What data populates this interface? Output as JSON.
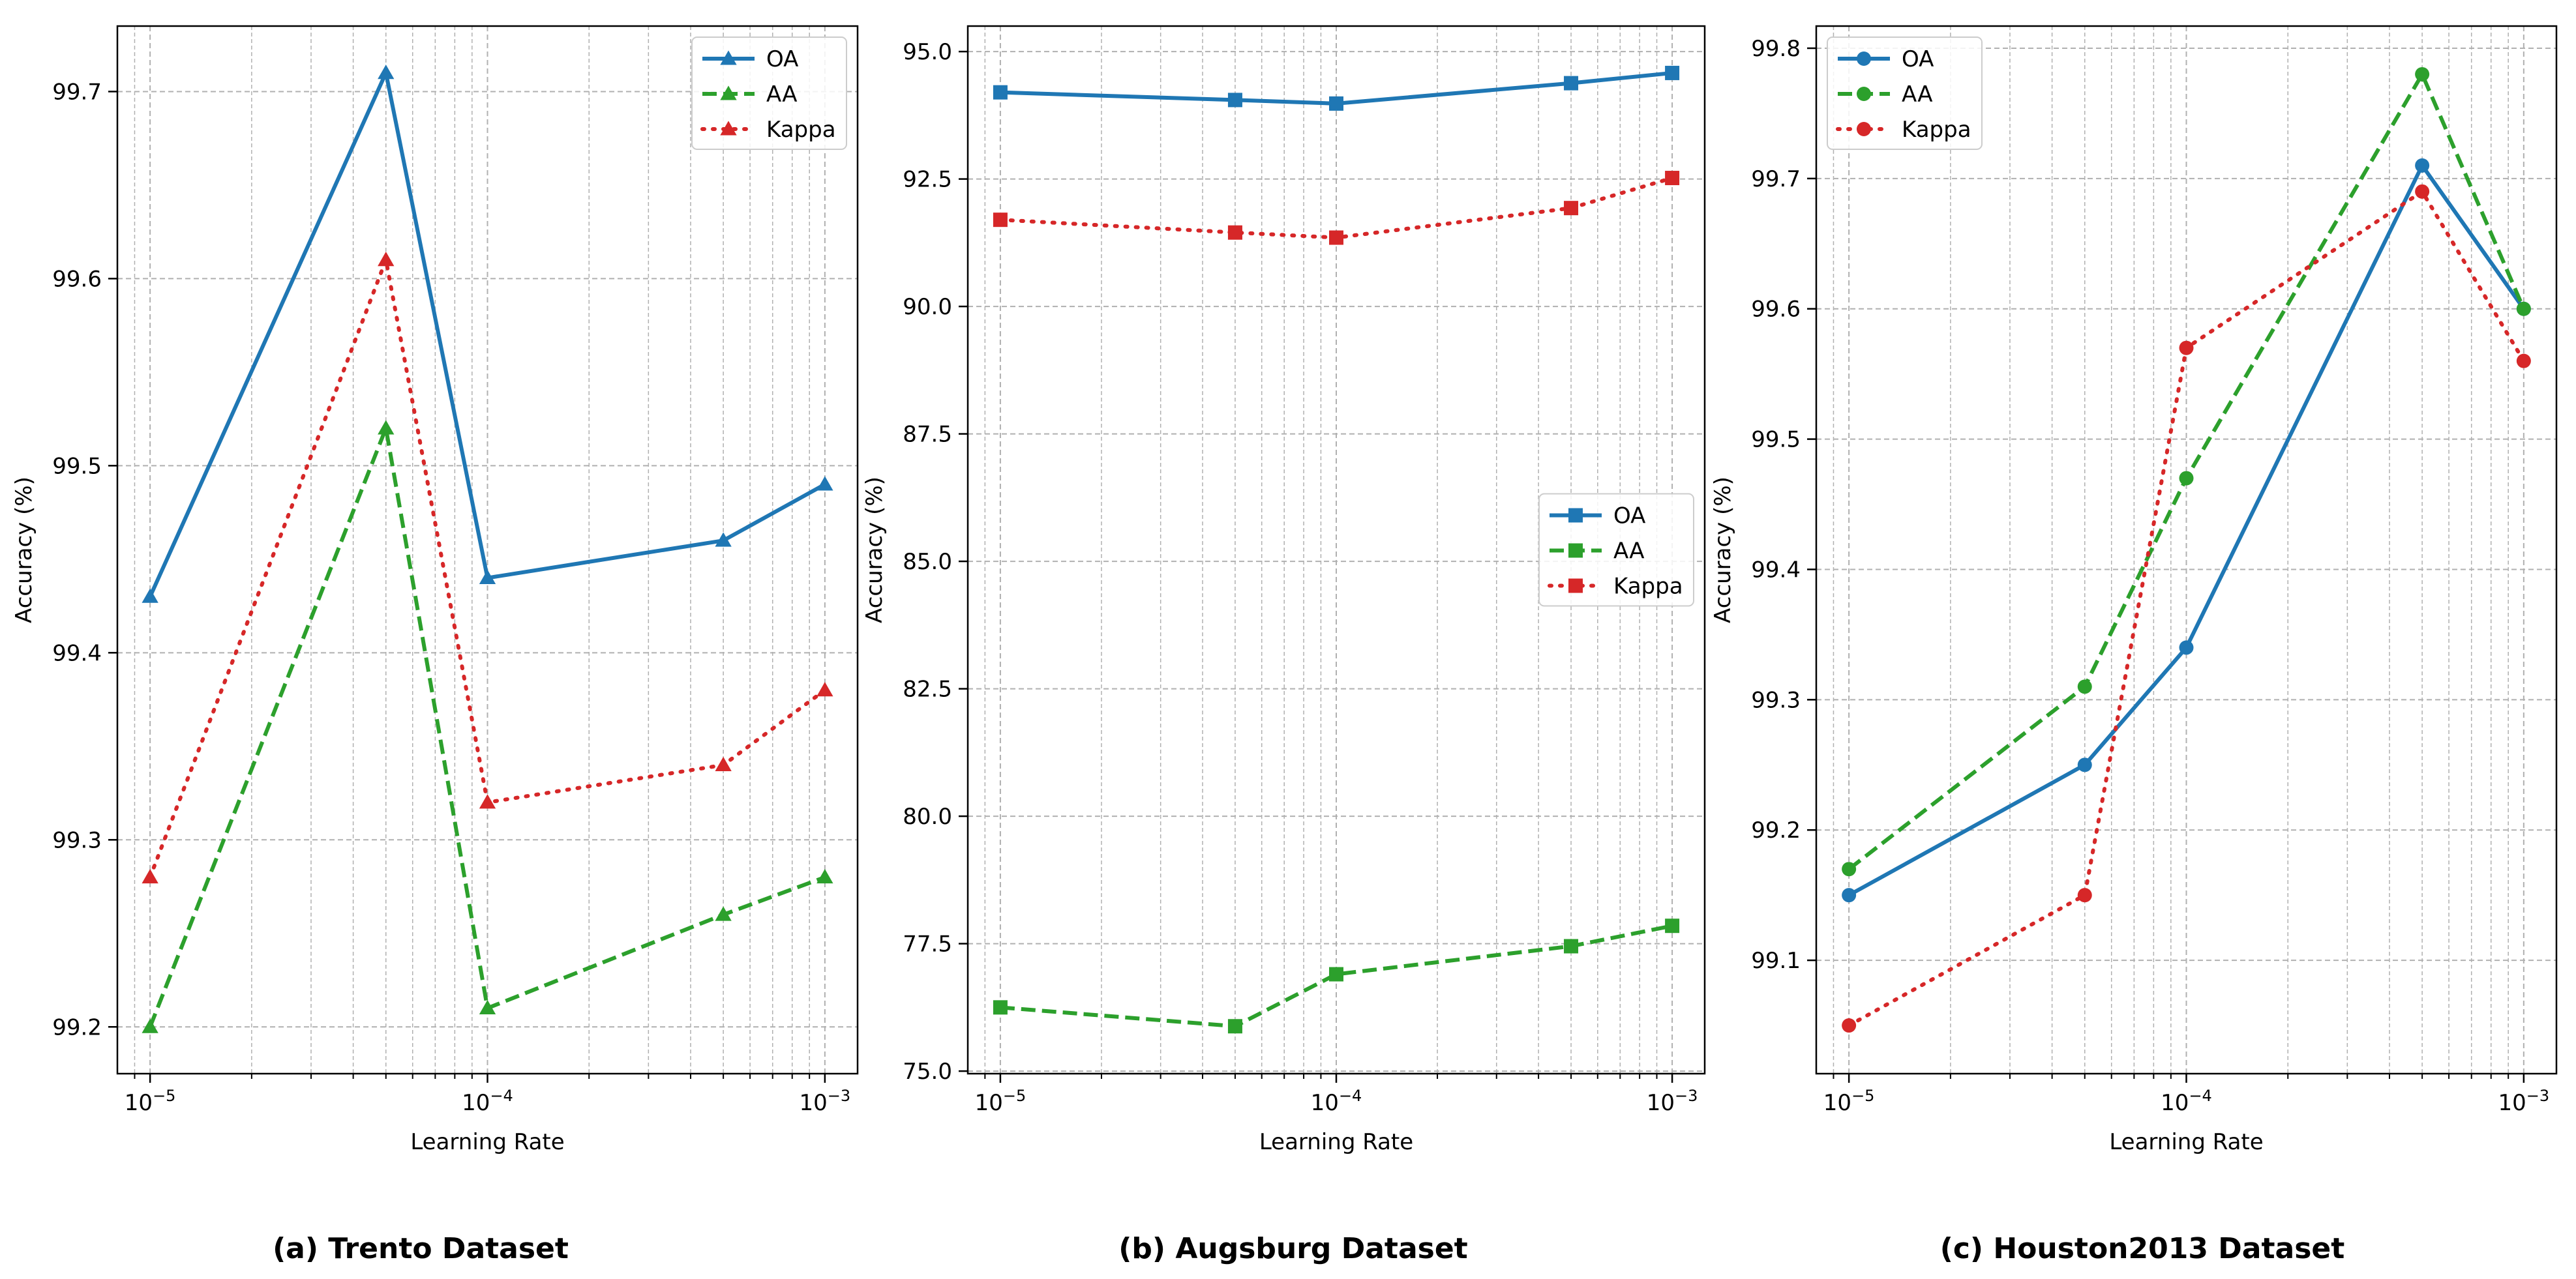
{
  "chart_data": [
    {
      "type": "line",
      "caption": "(a) Trento Dataset",
      "xlabel": "Learning Rate",
      "ylabel": "Accuracy (%)",
      "xscale": "log",
      "xlim": [
        8e-06,
        0.00125
      ],
      "ylim": [
        99.175,
        99.735
      ],
      "x": [
        1e-05,
        5e-05,
        0.0001,
        0.0005,
        0.001
      ],
      "xticks": [
        {
          "value": 1e-05,
          "base": "10",
          "exp": "−5"
        },
        {
          "value": 0.0001,
          "base": "10",
          "exp": "−4"
        },
        {
          "value": 0.001,
          "base": "10",
          "exp": "−3"
        }
      ],
      "yticks": [
        "99.2",
        "99.3",
        "99.4",
        "99.5",
        "99.6",
        "99.7"
      ],
      "legend_position": "upper right",
      "marker": "triangle",
      "series": [
        {
          "name": "OA",
          "values": [
            99.43,
            99.71,
            99.44,
            99.46,
            99.49
          ],
          "color": "#1f77b4",
          "linestyle": "solid"
        },
        {
          "name": "AA",
          "values": [
            99.2,
            99.52,
            99.21,
            99.26,
            99.28
          ],
          "color": "#2ca02c",
          "linestyle": "dashed"
        },
        {
          "name": "Kappa",
          "values": [
            99.28,
            99.61,
            99.32,
            99.34,
            99.38
          ],
          "color": "#d62728",
          "linestyle": "dotted"
        }
      ],
      "grid": true
    },
    {
      "type": "line",
      "caption": "(b) Augsburg Dataset",
      "xlabel": "Learning Rate",
      "ylabel": "Accuracy (%)",
      "xscale": "log",
      "xlim": [
        8e-06,
        0.00125
      ],
      "ylim": [
        74.95,
        95.5
      ],
      "x": [
        1e-05,
        5e-05,
        0.0001,
        0.0005,
        0.001
      ],
      "xticks": [
        {
          "value": 1e-05,
          "base": "10",
          "exp": "−5"
        },
        {
          "value": 0.0001,
          "base": "10",
          "exp": "−4"
        },
        {
          "value": 0.001,
          "base": "10",
          "exp": "−3"
        }
      ],
      "yticks": [
        "75.0",
        "77.5",
        "80.0",
        "82.5",
        "85.0",
        "87.5",
        "90.0",
        "92.5",
        "95.0"
      ],
      "legend_position": "center right",
      "marker": "square",
      "series": [
        {
          "name": "OA",
          "values": [
            94.2,
            94.05,
            93.98,
            94.38,
            94.58
          ],
          "color": "#1f77b4",
          "linestyle": "solid"
        },
        {
          "name": "AA",
          "values": [
            76.25,
            75.88,
            76.9,
            77.45,
            77.85
          ],
          "color": "#2ca02c",
          "linestyle": "dashed"
        },
        {
          "name": "Kappa",
          "values": [
            91.7,
            91.45,
            91.35,
            91.93,
            92.52
          ],
          "color": "#d62728",
          "linestyle": "dotted"
        }
      ],
      "grid": true
    },
    {
      "type": "line",
      "caption": "(c) Houston2013 Dataset",
      "xlabel": "Learning Rate",
      "ylabel": "Accuracy (%)",
      "xscale": "log",
      "xlim": [
        8e-06,
        0.00125
      ],
      "ylim": [
        99.013,
        99.817
      ],
      "x": [
        1e-05,
        5e-05,
        0.0001,
        0.0005,
        0.001
      ],
      "xticks": [
        {
          "value": 1e-05,
          "base": "10",
          "exp": "−5"
        },
        {
          "value": 0.0001,
          "base": "10",
          "exp": "−4"
        },
        {
          "value": 0.001,
          "base": "10",
          "exp": "−3"
        }
      ],
      "yticks": [
        "99.1",
        "99.2",
        "99.3",
        "99.4",
        "99.5",
        "99.6",
        "99.7",
        "99.8"
      ],
      "legend_position": "upper left",
      "marker": "circle",
      "series": [
        {
          "name": "OA",
          "values": [
            99.15,
            99.25,
            99.34,
            99.71,
            99.6
          ],
          "color": "#1f77b4",
          "linestyle": "solid"
        },
        {
          "name": "AA",
          "values": [
            99.17,
            99.31,
            99.47,
            99.78,
            99.6
          ],
          "color": "#2ca02c",
          "linestyle": "dashed"
        },
        {
          "name": "Kappa",
          "values": [
            99.05,
            99.15,
            99.57,
            99.69,
            99.56
          ],
          "color": "#d62728",
          "linestyle": "dotted"
        }
      ],
      "grid": true
    }
  ]
}
